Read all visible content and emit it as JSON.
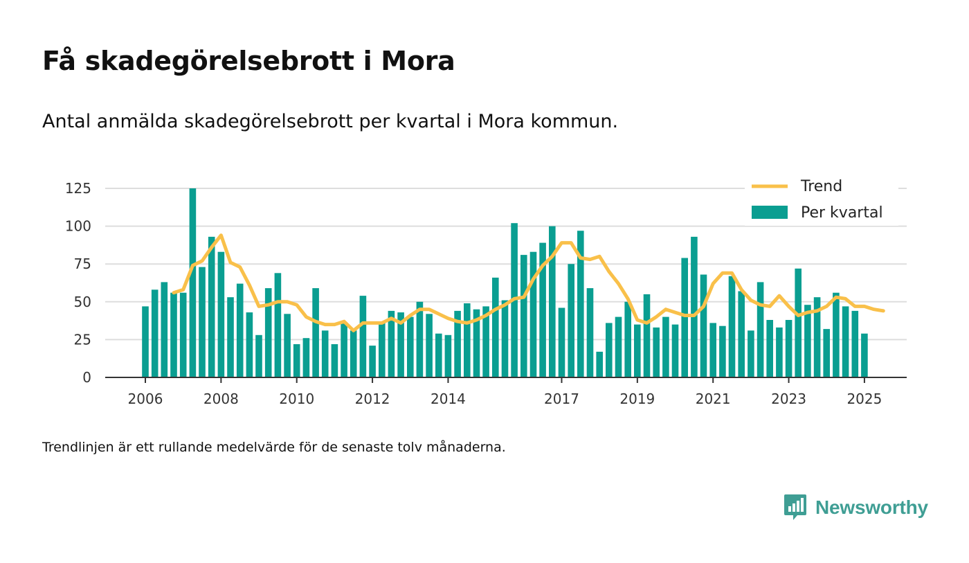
{
  "title": "Få skadegörelsebrott i Mora",
  "subtitle": "Antal anmälda skadegörelsebrott per kvartal i Mora kommun.",
  "note": "Trendlinjen är ett rullande medelvärde för de senaste tolv månaderna.",
  "brand": "Newsworthy",
  "colors": {
    "bar": "#0a9e91",
    "trend": "#f9c04a",
    "grid": "#dddddd",
    "axis": "#333333",
    "brand": "#3f9e94"
  },
  "chart_data": {
    "type": "bar",
    "ylim": [
      0,
      125
    ],
    "y_ticks": [
      "0",
      "25",
      "50",
      "75",
      "100",
      "125"
    ],
    "x_ticks": [
      {
        "label": "2006",
        "pos": 0
      },
      {
        "label": "2008",
        "pos": 8
      },
      {
        "label": "2010",
        "pos": 16
      },
      {
        "label": "2012",
        "pos": 24
      },
      {
        "label": "2014",
        "pos": 32
      },
      {
        "label": "2017",
        "pos": 44
      },
      {
        "label": "2019",
        "pos": 52
      },
      {
        "label": "2021",
        "pos": 60
      },
      {
        "label": "2023",
        "pos": 68
      },
      {
        "label": "2025",
        "pos": 76
      }
    ],
    "grid": true,
    "legend": {
      "position": "top-right",
      "trend_label": "Trend",
      "bars_label": "Per kvartal"
    },
    "series": [
      {
        "name": "Per kvartal",
        "type": "bar",
        "values": [
          47,
          58,
          63,
          56,
          56,
          125,
          73,
          93,
          83,
          53,
          62,
          43,
          28,
          59,
          69,
          42,
          22,
          26,
          59,
          31,
          22,
          36,
          31,
          54,
          21,
          36,
          44,
          43,
          40,
          50,
          42,
          29,
          28,
          44,
          49,
          45,
          47,
          66,
          51,
          102,
          81,
          83,
          89,
          100,
          46,
          75,
          97,
          59,
          17,
          36,
          40,
          50,
          35,
          55,
          33,
          40,
          35,
          79,
          93,
          68,
          36,
          34,
          67,
          57,
          31,
          63,
          38,
          33,
          38,
          72,
          48,
          53,
          32,
          56,
          47,
          44,
          29
        ]
      },
      {
        "name": "Trend",
        "type": "line",
        "start_index": 3,
        "values": [
          56,
          58,
          74,
          77,
          86,
          94,
          76,
          73,
          61,
          47,
          48,
          50,
          50,
          48,
          40,
          37,
          35,
          35,
          37,
          31,
          36,
          36,
          36,
          39,
          36,
          41,
          45,
          45,
          42,
          39,
          37,
          36,
          38,
          41,
          45,
          48,
          52,
          53,
          65,
          74,
          80,
          89,
          89,
          79,
          78,
          80,
          70,
          62,
          52,
          38,
          36,
          40,
          45,
          43,
          41,
          41,
          47,
          62,
          69,
          69,
          58,
          51,
          48,
          47,
          54,
          47,
          41,
          43,
          44,
          47,
          53,
          52,
          47,
          47,
          45,
          44
        ]
      }
    ]
  }
}
